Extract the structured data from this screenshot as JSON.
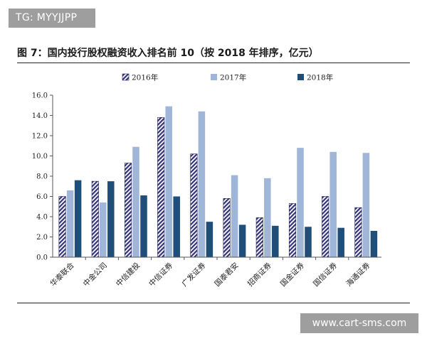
{
  "tag": {
    "text": "TG: MYYJJPP"
  },
  "figure": {
    "title": "图 7：国内投行股权融资收入排名前 10（按 2018 年排序，亿元）"
  },
  "watermark": {
    "text": "www.cart-sms.com"
  },
  "chart_data": {
    "type": "bar",
    "title": "",
    "xlabel": "",
    "ylabel": "",
    "ylim": [
      0,
      16
    ],
    "yticks": [
      "0.0",
      "2.0",
      "4.0",
      "6.0",
      "8.0",
      "10.0",
      "12.0",
      "14.0",
      "16.0"
    ],
    "grid": false,
    "legend_position": "top",
    "categories": [
      "华泰联合",
      "中金公司",
      "中信建投",
      "中信证券",
      "广发证券",
      "国泰君安",
      "招商证券",
      "国金证券",
      "国信证券",
      "海通证券"
    ],
    "series": [
      {
        "name": "2016年",
        "style": "hatched",
        "color": "#33337a",
        "values": [
          6.0,
          7.5,
          9.3,
          13.8,
          10.2,
          5.8,
          3.9,
          5.3,
          6.0,
          4.9
        ]
      },
      {
        "name": "2017年",
        "style": "solid",
        "color": "#9fb6d8",
        "values": [
          6.6,
          5.4,
          10.9,
          14.9,
          14.4,
          8.1,
          7.8,
          10.8,
          10.4,
          10.3
        ]
      },
      {
        "name": "2018年",
        "style": "solid",
        "color": "#1f4e79",
        "values": [
          7.6,
          7.5,
          6.1,
          6.0,
          3.5,
          3.2,
          3.1,
          3.0,
          2.9,
          2.6
        ]
      }
    ]
  }
}
